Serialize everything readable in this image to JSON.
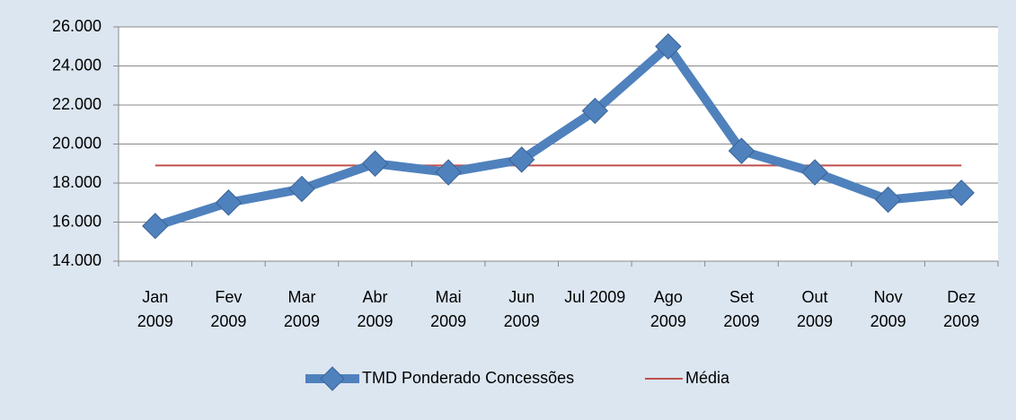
{
  "chart_data": {
    "type": "line",
    "categories": [
      "Jan 2009",
      "Fev 2009",
      "Mar 2009",
      "Abr 2009",
      "Mai 2009",
      "Jun 2009",
      "Jul 2009",
      "Ago 2009",
      "Set 2009",
      "Out 2009",
      "Nov 2009",
      "Dez 2009"
    ],
    "series": [
      {
        "name": "TMD Ponderado  Concessões",
        "color": "#4f81bd",
        "values": [
          15800,
          17000,
          17700,
          19000,
          18550,
          19200,
          21700,
          25000,
          19650,
          18550,
          17150,
          17500
        ]
      },
      {
        "name": "Média",
        "color": "#c0504d",
        "values": [
          18900,
          18900,
          18900,
          18900,
          18900,
          18900,
          18900,
          18900,
          18900,
          18900,
          18900,
          18900
        ]
      }
    ],
    "ylim": [
      14000,
      26000
    ],
    "yticks": [
      {
        "value": 14000,
        "label": "14.000"
      },
      {
        "value": 16000,
        "label": "16.000"
      },
      {
        "value": 18000,
        "label": "18.000"
      },
      {
        "value": 20000,
        "label": "20.000"
      },
      {
        "value": 22000,
        "label": "22.000"
      },
      {
        "value": 24000,
        "label": "24.000"
      },
      {
        "value": 26000,
        "label": "26.000"
      }
    ],
    "grid": true,
    "legend": "bottom"
  }
}
